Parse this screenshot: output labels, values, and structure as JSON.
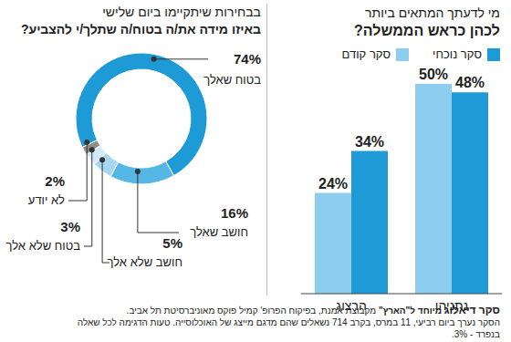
{
  "chart_data": [
    {
      "type": "donut",
      "title": [
        "בבחירות שיתקיימו ביום שלישי",
        "באיזו מידה את/ה בטוח/ה שתלך/י להצביע?"
      ],
      "categories": [
        "בטוח שאלך",
        "חושב שאלך",
        "חושב שלא אלך",
        "בטוח שלא אלך",
        "לא יודע"
      ],
      "values": [
        74,
        16,
        5,
        3,
        2
      ],
      "value_labels": [
        "74%",
        "16%",
        "5%",
        "3%",
        "2%"
      ],
      "colors": [
        "#1e9bd7",
        "#56b6e6",
        "#a6d6f1",
        "#d3ebf8",
        "#8c8c8c"
      ],
      "data_labels": true
    },
    {
      "type": "bar",
      "title": [
        "מי לדעתך המתאים ביותר",
        "לכהן כראש הממשלה?"
      ],
      "categories": [
        "הרצוג",
        "נתניהו"
      ],
      "series": [
        {
          "name": "סקר קודם",
          "color": "#8dcdf0",
          "values": [
            24,
            50
          ],
          "value_labels": [
            "24%",
            "50%"
          ]
        },
        {
          "name": "סקר נוכחי",
          "color": "#1e9bd7",
          "values": [
            34,
            48
          ],
          "value_labels": [
            "34%",
            "48%"
          ]
        }
      ],
      "ylim": [
        0,
        50
      ],
      "tick_labels": "x",
      "legend": "top",
      "data_labels": true
    }
  ],
  "footer": {
    "brand": "סקר דיאלוג",
    "sponsor": "מיוחד ל\"הארץ\"",
    "text": [
      "מקבוצת אמנת, בפיקוח הפרופ' קמיל פוקס מאוניברסיטת תל אביב.",
      "הסקר נערך ביום רביעי, 11 במרס, בקרב 714 נשאלים שהם מדגם מייצג של האוכלוסייה. טעות הדגימה לכל שאלה",
      "בנפרד - 3%."
    ]
  }
}
